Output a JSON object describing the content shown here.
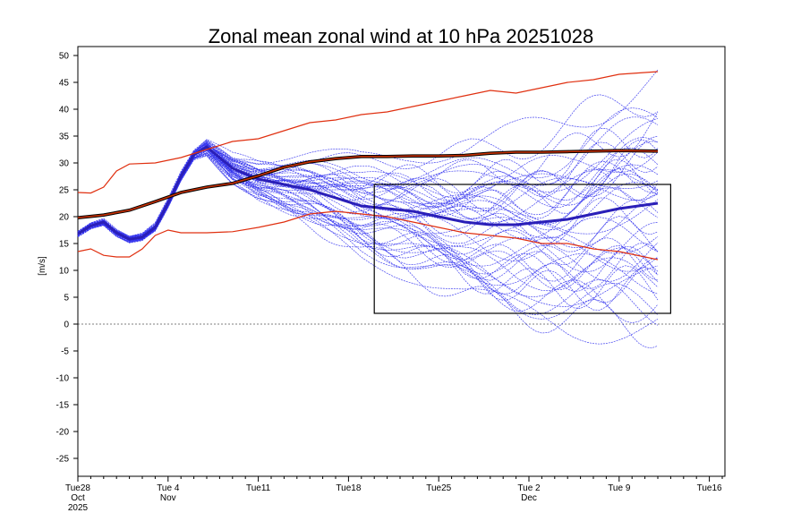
{
  "chart_data": {
    "type": "line",
    "title": "Zonal mean zonal wind at 10 hPa 20251028",
    "xlabel": "",
    "ylabel": "[m/s]",
    "ylim": [
      -30,
      52
    ],
    "xlim": [
      0,
      50
    ],
    "yticks": [
      50,
      45,
      40,
      35,
      30,
      25,
      20,
      15,
      10,
      5,
      0,
      -5,
      -10,
      -15,
      -20,
      -25
    ],
    "x_ticks": [
      {
        "x": 0,
        "labels": [
          "Tue28",
          "Oct",
          "2025"
        ]
      },
      {
        "x": 7,
        "labels": [
          "Tue 4",
          "Nov"
        ]
      },
      {
        "x": 14,
        "labels": [
          "Tue11"
        ]
      },
      {
        "x": 21,
        "labels": [
          "Tue18"
        ]
      },
      {
        "x": 28,
        "labels": [
          "Tue25"
        ]
      },
      {
        "x": 35,
        "labels": [
          "Tue 2",
          "Dec"
        ]
      },
      {
        "x": 42,
        "labels": [
          "Tue 9"
        ]
      },
      {
        "x": 49,
        "labels": [
          "Tue16"
        ]
      }
    ],
    "zero_line": true,
    "highlight_box": {
      "x0": 23,
      "x1": 46,
      "y0": 2,
      "y1": 26
    },
    "ensemble": {
      "name": "ensemble members",
      "color": "#3333ee",
      "count": 51,
      "x": [
        0,
        1,
        2,
        3,
        4,
        5,
        6,
        7,
        8,
        9,
        10,
        11,
        12,
        14,
        16,
        18,
        20,
        22,
        24,
        26,
        28,
        30,
        32,
        34,
        36,
        38,
        40,
        42,
        45
      ],
      "mean": [
        16.8,
        18.3,
        19.0,
        17.0,
        15.8,
        16.2,
        18.0,
        22.5,
        27.5,
        31.5,
        33.0,
        31.0,
        29.0,
        27.0,
        26.0,
        25.0,
        23.5,
        22.0,
        21.5,
        21.0,
        20.0,
        19.0,
        18.5,
        18.5,
        19.0,
        19.5,
        20.5,
        21.5,
        22.5
      ],
      "spread_end": 24
    },
    "series": [
      {
        "name": "ensemble mean",
        "color": "#2a1fb8",
        "x": [
          0,
          1,
          2,
          3,
          4,
          5,
          6,
          7,
          8,
          9,
          10,
          11,
          12,
          14,
          16,
          18,
          20,
          22,
          24,
          26,
          28,
          30,
          32,
          34,
          36,
          38,
          40,
          42,
          45
        ],
        "y": [
          16.8,
          18.3,
          19.0,
          17.0,
          15.8,
          16.2,
          18.0,
          22.5,
          27.5,
          31.5,
          33.0,
          31.0,
          29.0,
          27.0,
          26.0,
          25.0,
          23.5,
          22.0,
          21.5,
          21.0,
          20.0,
          19.0,
          18.5,
          18.5,
          19.0,
          19.5,
          20.5,
          21.5,
          22.5
        ]
      },
      {
        "name": "climatological mean",
        "color": "#c73000",
        "x": [
          0,
          2,
          4,
          6,
          8,
          10,
          12,
          14,
          16,
          18,
          20,
          22,
          24,
          26,
          28,
          30,
          32,
          34,
          36,
          38,
          40,
          42,
          45
        ],
        "y": [
          19.8,
          20.3,
          21.2,
          22.8,
          24.5,
          25.5,
          26.2,
          27.6,
          29.2,
          30.2,
          30.8,
          31.2,
          31.2,
          31.3,
          31.3,
          31.4,
          31.8,
          32.0,
          32.0,
          32.1,
          32.2,
          32.3,
          32.2
        ]
      },
      {
        "name": "climatological max",
        "color": "#e03010",
        "x": [
          0,
          1,
          2,
          3,
          4,
          6,
          8,
          10,
          12,
          14,
          16,
          18,
          20,
          22,
          24,
          26,
          28,
          30,
          32,
          34,
          36,
          38,
          40,
          42,
          45
        ],
        "y": [
          24.5,
          24.4,
          25.5,
          28.5,
          29.8,
          30.0,
          31.0,
          32.5,
          34.0,
          34.5,
          36.0,
          37.5,
          38.0,
          39.0,
          39.5,
          40.5,
          41.5,
          42.5,
          43.5,
          43.0,
          44.0,
          45.0,
          45.5,
          46.5,
          47.0
        ]
      },
      {
        "name": "climatological min",
        "color": "#e03010",
        "x": [
          0,
          1,
          2,
          3,
          4,
          5,
          6,
          7,
          8,
          10,
          12,
          14,
          16,
          18,
          20,
          22,
          24,
          26,
          28,
          30,
          32,
          34,
          36,
          38,
          40,
          42,
          45
        ],
        "y": [
          13.5,
          14.0,
          12.8,
          12.5,
          12.5,
          14.0,
          16.5,
          17.5,
          17.0,
          17.0,
          17.2,
          18.0,
          19.0,
          20.5,
          21.0,
          20.5,
          20.0,
          19.0,
          18.0,
          17.0,
          16.5,
          16.0,
          15.0,
          15.0,
          14.0,
          13.5,
          12.0
        ]
      }
    ]
  }
}
